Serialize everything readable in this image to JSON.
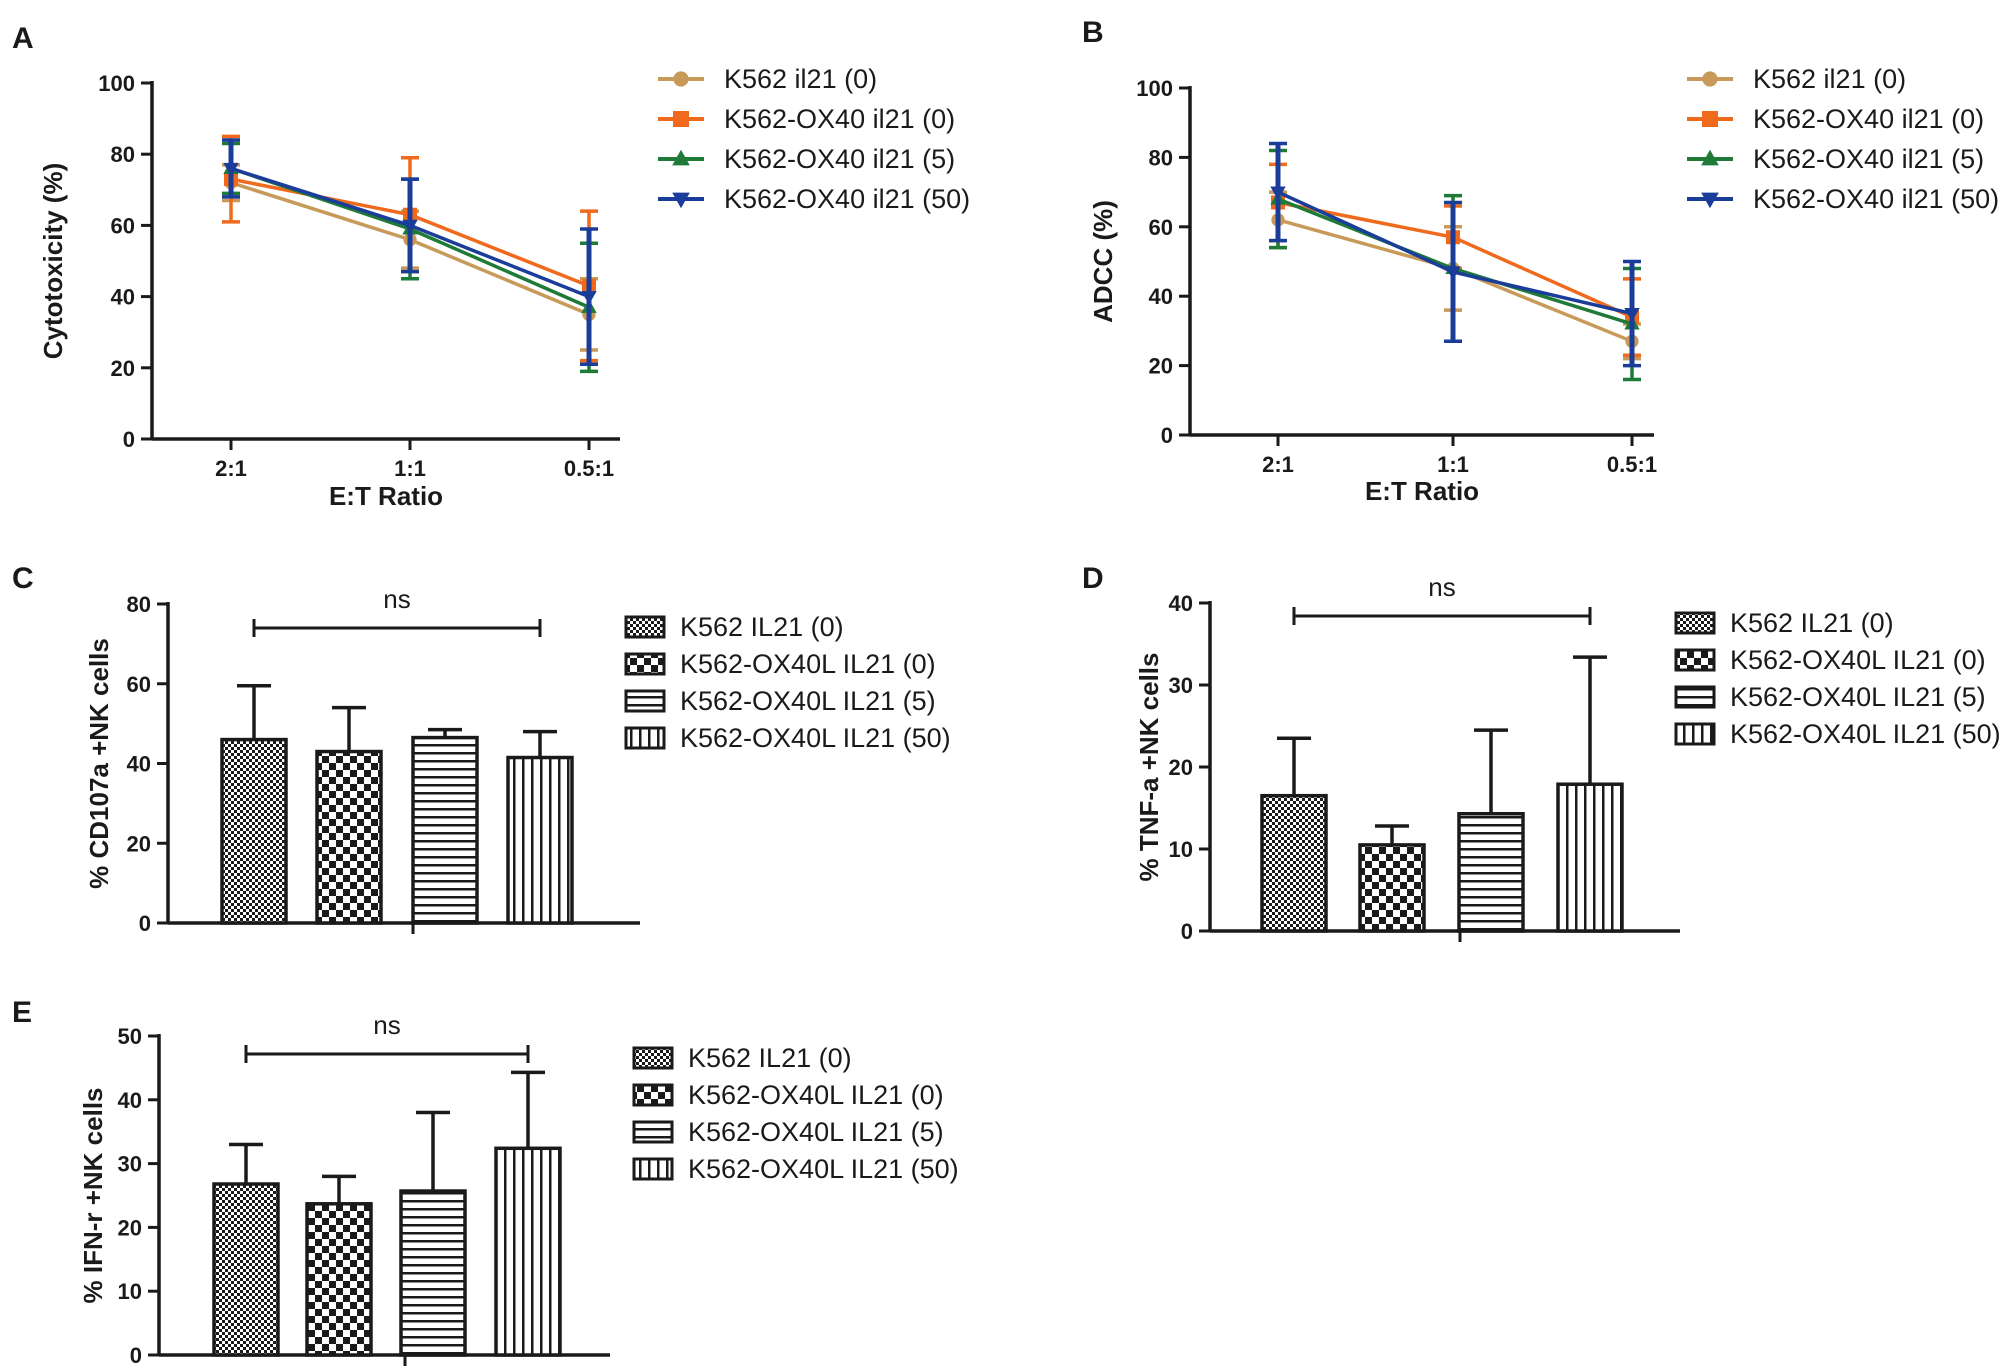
{
  "colors": {
    "K562 il21 (0)": "#c89a5a",
    "K562-OX40 il21 (0)": "#f06a1d",
    "K562-OX40 il21 (5)": "#1f7a38",
    "K562-OX40 il21 (50)": "#1b3d9a",
    "axis": "#1a1a1a"
  },
  "chart_data": [
    {
      "panel": "A",
      "type": "line",
      "categories": [
        "2:1",
        "1:1",
        "0.5:1"
      ],
      "xlabel": "E:T Ratio",
      "ylabel": "Cytotoxicity (%)",
      "ylim": [
        0,
        100
      ],
      "yticks": [
        "0",
        "20",
        "40",
        "60",
        "80",
        "100"
      ],
      "series": [
        {
          "name": "K562 il21 (0)",
          "marker": "circle",
          "values": [
            72,
            56,
            35
          ],
          "errors": [
            5,
            8,
            10
          ]
        },
        {
          "name": "K562-OX40 il21 (0)",
          "marker": "square",
          "values": [
            73,
            63,
            43
          ],
          "errors": [
            12,
            16,
            21
          ]
        },
        {
          "name": "K562-OX40 il21 (5)",
          "marker": "triangle-up",
          "values": [
            76,
            59,
            37
          ],
          "errors": [
            7,
            14,
            18
          ]
        },
        {
          "name": "K562-OX40 il21 (50)",
          "marker": "triangle-down",
          "values": [
            76,
            60,
            40
          ],
          "errors": [
            8,
            13,
            19
          ]
        }
      ]
    },
    {
      "panel": "B",
      "type": "line",
      "categories": [
        "2:1",
        "1:1",
        "0.5:1"
      ],
      "xlabel": "E:T Ratio",
      "ylabel": "ADCC (%)",
      "ylim": [
        0,
        100
      ],
      "yticks": [
        "0",
        "20",
        "40",
        "60",
        "80",
        "100"
      ],
      "series": [
        {
          "name": "K562 il21 (0)",
          "marker": "circle",
          "values": [
            62,
            48,
            27
          ],
          "errors": [
            8,
            12,
            5
          ]
        },
        {
          "name": "K562-OX40 il21 (0)",
          "marker": "square",
          "values": [
            67,
            57,
            34
          ],
          "errors": [
            11,
            9,
            11
          ]
        },
        {
          "name": "K562-OX40 il21 (5)",
          "marker": "triangle-up",
          "values": [
            68,
            48,
            32
          ],
          "errors": [
            14,
            21,
            16
          ]
        },
        {
          "name": "K562-OX40 il21 (50)",
          "marker": "triangle-down",
          "values": [
            70,
            47,
            35
          ],
          "errors": [
            14,
            20,
            15
          ]
        }
      ]
    },
    {
      "panel": "C",
      "type": "bar",
      "categories": [
        "K562 IL21 (0)",
        "K562-OX40L IL21 (0)",
        "K562-OX40L IL21 (5)",
        "K562-OX40L IL21 (50)"
      ],
      "patterns": [
        "dots",
        "checker",
        "horizontal",
        "vertical"
      ],
      "values": [
        46,
        43,
        46.5,
        41.5
      ],
      "errors": [
        13.5,
        11,
        2,
        6.5
      ],
      "ylabel": "% CD107a +NK cells",
      "ylim": [
        0,
        80
      ],
      "yticks": [
        "0",
        "20",
        "40",
        "60",
        "80"
      ],
      "annotation": "ns"
    },
    {
      "panel": "D",
      "type": "bar",
      "categories": [
        "K562 IL21 (0)",
        "K562-OX40L IL21 (0)",
        "K562-OX40L IL21 (5)",
        "K562-OX40L IL21 (50)"
      ],
      "patterns": [
        "dots",
        "checker",
        "horizontal",
        "vertical"
      ],
      "values": [
        16.5,
        10.5,
        14.3,
        17.9
      ],
      "errors": [
        7,
        2.3,
        10.2,
        15.5
      ],
      "ylabel": "% TNF-a +NK cells",
      "ylim": [
        0,
        40
      ],
      "yticks": [
        "0",
        "10",
        "20",
        "30",
        "40"
      ],
      "annotation": "ns"
    },
    {
      "panel": "E",
      "type": "bar",
      "categories": [
        "K562 IL21 (0)",
        "K562-OX40L IL21 (0)",
        "K562-OX40L IL21 (5)",
        "K562-OX40L IL21 (50)"
      ],
      "patterns": [
        "dots",
        "checker",
        "horizontal",
        "vertical"
      ],
      "values": [
        26.8,
        23.7,
        25.7,
        32.4
      ],
      "errors": [
        6.2,
        4.3,
        12.3,
        11.9
      ],
      "ylabel": "% IFN-r +NK cells",
      "ylim": [
        0,
        50
      ],
      "yticks": [
        "0",
        "10",
        "20",
        "30",
        "40",
        "50"
      ],
      "annotation": "ns"
    }
  ]
}
